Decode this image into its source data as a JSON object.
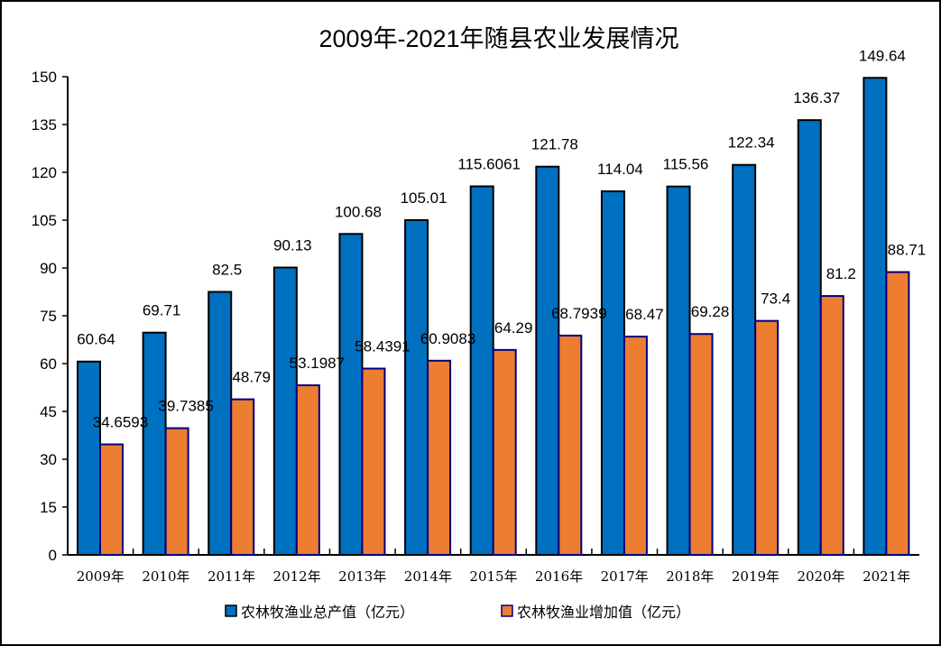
{
  "chart_data": {
    "type": "bar",
    "title": "2009年-2021年随县农业发展情况",
    "xlabel": "",
    "ylabel": "",
    "ylim": [
      0,
      150
    ],
    "yticks": [
      0,
      15,
      30,
      45,
      60,
      75,
      90,
      105,
      120,
      135,
      150
    ],
    "grid": false,
    "legend_position": "bottom",
    "categories": [
      "2009年",
      "2010年",
      "2011年",
      "2012年",
      "2013年",
      "2014年",
      "2015年",
      "2016年",
      "2017年",
      "2018年",
      "2019年",
      "2020年",
      "2021年"
    ],
    "series": [
      {
        "name": "农林牧渔业总产值（亿元）",
        "color": "#0070C0",
        "border": "#000000",
        "values": [
          60.64,
          69.71,
          82.5,
          90.13,
          100.68,
          105.01,
          115.6061,
          121.78,
          114.04,
          115.56,
          122.34,
          136.37,
          149.64
        ],
        "labels": [
          "60.64",
          "69.71",
          "82.5",
          "90.13",
          "100.68",
          "105.01",
          "115.6061",
          "121.78",
          "114.04",
          "115.56",
          "122.34",
          "136.37",
          "149.64"
        ]
      },
      {
        "name": "农林牧渔业增加值（亿元）",
        "color": "#ED7D31",
        "border": "#000080",
        "values": [
          34.6593,
          39.7385,
          48.79,
          53.1987,
          58.4391,
          60.9083,
          64.29,
          68.7939,
          68.47,
          69.28,
          73.4,
          81.2,
          88.71
        ],
        "labels": [
          "34.6593",
          "39.7385",
          "48.79",
          "53.1987",
          "58.4391",
          "60.9083",
          "64.29",
          "68.7939",
          "68.47",
          "69.28",
          "73.4",
          "81.2",
          "88.71"
        ]
      }
    ]
  }
}
